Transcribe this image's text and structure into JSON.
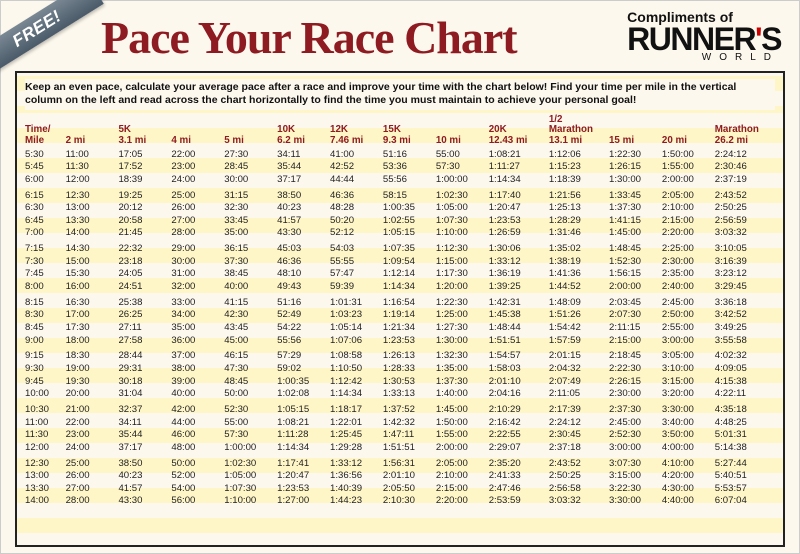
{
  "ribbon": "FREE!",
  "title": "Pace Your Race Chart",
  "compliments": "Compliments of",
  "brand": {
    "main": "RUNNER",
    "apostrophe": "'",
    "s": "S",
    "world": "WORLD"
  },
  "instruction": "Keep an even pace, calculate your average pace after a race and improve your time with the chart below! Find your time per mile in the vertical column on the left and read across the chart horizontally to find the time you must maintain to achieve your personal goal!",
  "colors": {
    "accent": "#8e1b21",
    "background": "#fdf8ed",
    "stripe": "#fff6c8",
    "border": "#222222",
    "brand_accent": "#cc0000"
  },
  "columns": [
    {
      "l1": "Time/",
      "l2": "Mile"
    },
    {
      "l1": "",
      "l2": "2 mi"
    },
    {
      "l1": "5K",
      "l2": "3.1 mi"
    },
    {
      "l1": "",
      "l2": "4 mi"
    },
    {
      "l1": "",
      "l2": "5 mi"
    },
    {
      "l1": "10K",
      "l2": "6.2 mi"
    },
    {
      "l1": "12K",
      "l2": "7.46 mi"
    },
    {
      "l1": "15K",
      "l2": "9.3 mi"
    },
    {
      "l1": "",
      "l2": "10 mi"
    },
    {
      "l1": "20K",
      "l2": "12.43 mi"
    },
    {
      "l1": "1/2 Marathon",
      "l2": "13.1 mi"
    },
    {
      "l1": "",
      "l2": "15 mi"
    },
    {
      "l1": "",
      "l2": "20 mi"
    },
    {
      "l1": "Marathon",
      "l2": "26.2 mi"
    }
  ],
  "groups": [
    [
      [
        "5:30",
        "11:00",
        "17:05",
        "22:00",
        "27:30",
        "34:11",
        "41:00",
        "51:16",
        "55:00",
        "1:08:21",
        "1:12:06",
        "1:22:30",
        "1:50:00",
        "2:24:12"
      ],
      [
        "5:45",
        "11:30",
        "17:52",
        "23:00",
        "28:45",
        "35:44",
        "42:52",
        "53:36",
        "57:30",
        "1:11:27",
        "1:15:23",
        "1:26:15",
        "1:55:00",
        "2:30:46"
      ],
      [
        "6:00",
        "12:00",
        "18:39",
        "24:00",
        "30:00",
        "37:17",
        "44:44",
        "55:56",
        "1:00:00",
        "1:14:34",
        "1:18:39",
        "1:30:00",
        "2:00:00",
        "2:37:19"
      ]
    ],
    [
      [
        "6:15",
        "12:30",
        "19:25",
        "25:00",
        "31:15",
        "38:50",
        "46:36",
        "58:15",
        "1:02:30",
        "1:17:40",
        "1:21:56",
        "1:33:45",
        "2:05:00",
        "2:43:52"
      ],
      [
        "6:30",
        "13:00",
        "20:12",
        "26:00",
        "32:30",
        "40:23",
        "48:28",
        "1:00:35",
        "1:05:00",
        "1:20:47",
        "1:25:13",
        "1:37:30",
        "2:10:00",
        "2:50:25"
      ],
      [
        "6:45",
        "13:30",
        "20:58",
        "27:00",
        "33:45",
        "41:57",
        "50:20",
        "1:02:55",
        "1:07:30",
        "1:23:53",
        "1:28:29",
        "1:41:15",
        "2:15:00",
        "2:56:59"
      ],
      [
        "7:00",
        "14:00",
        "21:45",
        "28:00",
        "35:00",
        "43:30",
        "52:12",
        "1:05:15",
        "1:10:00",
        "1:26:59",
        "1:31:46",
        "1:45:00",
        "2:20:00",
        "3:03:32"
      ]
    ],
    [
      [
        "7:15",
        "14:30",
        "22:32",
        "29:00",
        "36:15",
        "45:03",
        "54:03",
        "1:07:35",
        "1:12:30",
        "1:30:06",
        "1:35:02",
        "1:48:45",
        "2:25:00",
        "3:10:05"
      ],
      [
        "7:30",
        "15:00",
        "23:18",
        "30:00",
        "37:30",
        "46:36",
        "55:55",
        "1:09:54",
        "1:15:00",
        "1:33:12",
        "1:38:19",
        "1:52:30",
        "2:30:00",
        "3:16:39"
      ],
      [
        "7:45",
        "15:30",
        "24:05",
        "31:00",
        "38:45",
        "48:10",
        "57:47",
        "1:12:14",
        "1:17:30",
        "1:36:19",
        "1:41:36",
        "1:56:15",
        "2:35:00",
        "3:23:12"
      ],
      [
        "8:00",
        "16:00",
        "24:51",
        "32:00",
        "40:00",
        "49:43",
        "59:39",
        "1:14:34",
        "1:20:00",
        "1:39:25",
        "1:44:52",
        "2:00:00",
        "2:40:00",
        "3:29:45"
      ]
    ],
    [
      [
        "8:15",
        "16:30",
        "25:38",
        "33:00",
        "41:15",
        "51:16",
        "1:01:31",
        "1:16:54",
        "1:22:30",
        "1:42:31",
        "1:48:09",
        "2:03:45",
        "2:45:00",
        "3:36:18"
      ],
      [
        "8:30",
        "17:00",
        "26:25",
        "34:00",
        "42:30",
        "52:49",
        "1:03:23",
        "1:19:14",
        "1:25:00",
        "1:45:38",
        "1:51:26",
        "2:07:30",
        "2:50:00",
        "3:42:52"
      ],
      [
        "8:45",
        "17:30",
        "27:11",
        "35:00",
        "43:45",
        "54:22",
        "1:05:14",
        "1:21:34",
        "1:27:30",
        "1:48:44",
        "1:54:42",
        "2:11:15",
        "2:55:00",
        "3:49:25"
      ],
      [
        "9:00",
        "18:00",
        "27:58",
        "36:00",
        "45:00",
        "55:56",
        "1:07:06",
        "1:23:53",
        "1:30:00",
        "1:51:51",
        "1:57:59",
        "2:15:00",
        "3:00:00",
        "3:55:58"
      ]
    ],
    [
      [
        "9:15",
        "18:30",
        "28:44",
        "37:00",
        "46:15",
        "57:29",
        "1:08:58",
        "1:26:13",
        "1:32:30",
        "1:54:57",
        "2:01:15",
        "2:18:45",
        "3:05:00",
        "4:02:32"
      ],
      [
        "9:30",
        "19:00",
        "29:31",
        "38:00",
        "47:30",
        "59:02",
        "1:10:50",
        "1:28:33",
        "1:35:00",
        "1:58:03",
        "2:04:32",
        "2:22:30",
        "3:10:00",
        "4:09:05"
      ],
      [
        "9:45",
        "19:30",
        "30:18",
        "39:00",
        "48:45",
        "1:00:35",
        "1:12:42",
        "1:30:53",
        "1:37:30",
        "2:01:10",
        "2:07:49",
        "2:26:15",
        "3:15:00",
        "4:15:38"
      ],
      [
        "10:00",
        "20:00",
        "31:04",
        "40:00",
        "50:00",
        "1:02:08",
        "1:14:34",
        "1:33:13",
        "1:40:00",
        "2:04:16",
        "2:11:05",
        "2:30:00",
        "3:20:00",
        "4:22:11"
      ]
    ],
    [
      [
        "10:30",
        "21:00",
        "32:37",
        "42:00",
        "52:30",
        "1:05:15",
        "1:18:17",
        "1:37:52",
        "1:45:00",
        "2:10:29",
        "2:17:39",
        "2:37:30",
        "3:30:00",
        "4:35:18"
      ],
      [
        "11:00",
        "22:00",
        "34:11",
        "44:00",
        "55:00",
        "1:08:21",
        "1:22:01",
        "1:42:32",
        "1:50:00",
        "2:16:42",
        "2:24:12",
        "2:45:00",
        "3:40:00",
        "4:48:25"
      ],
      [
        "11:30",
        "23:00",
        "35:44",
        "46:00",
        "57:30",
        "1:11:28",
        "1:25:45",
        "1:47:11",
        "1:55:00",
        "2:22:55",
        "2:30:45",
        "2:52:30",
        "3:50:00",
        "5:01:31"
      ],
      [
        "12:00",
        "24:00",
        "37:17",
        "48:00",
        "1:00:00",
        "1:14:34",
        "1:29:28",
        "1:51:51",
        "2:00:00",
        "2:29:07",
        "2:37:18",
        "3:00:00",
        "4:00:00",
        "5:14:38"
      ]
    ],
    [
      [
        "12:30",
        "25:00",
        "38:50",
        "50:00",
        "1:02:30",
        "1:17:41",
        "1:33:12",
        "1:56:31",
        "2:05:00",
        "2:35:20",
        "2:43:52",
        "3:07:30",
        "4:10:00",
        "5:27:44"
      ],
      [
        "13:00",
        "26:00",
        "40:23",
        "52:00",
        "1:05:00",
        "1:20:47",
        "1:36:56",
        "2:01:10",
        "2:10:00",
        "2:41:33",
        "2:50:25",
        "3:15:00",
        "4:20:00",
        "5:40:51"
      ],
      [
        "13:30",
        "27:00",
        "41:57",
        "54:00",
        "1:07:30",
        "1:23:53",
        "1:40:39",
        "2:05:50",
        "2:15:00",
        "2:47:46",
        "2:56:58",
        "3:22:30",
        "4:30:00",
        "5:53:57"
      ],
      [
        "14:00",
        "28:00",
        "43:30",
        "56:00",
        "1:10:00",
        "1:27:00",
        "1:44:23",
        "2:10:30",
        "2:20:00",
        "2:53:59",
        "3:03:32",
        "3:30:00",
        "4:40:00",
        "6:07:04"
      ]
    ]
  ]
}
